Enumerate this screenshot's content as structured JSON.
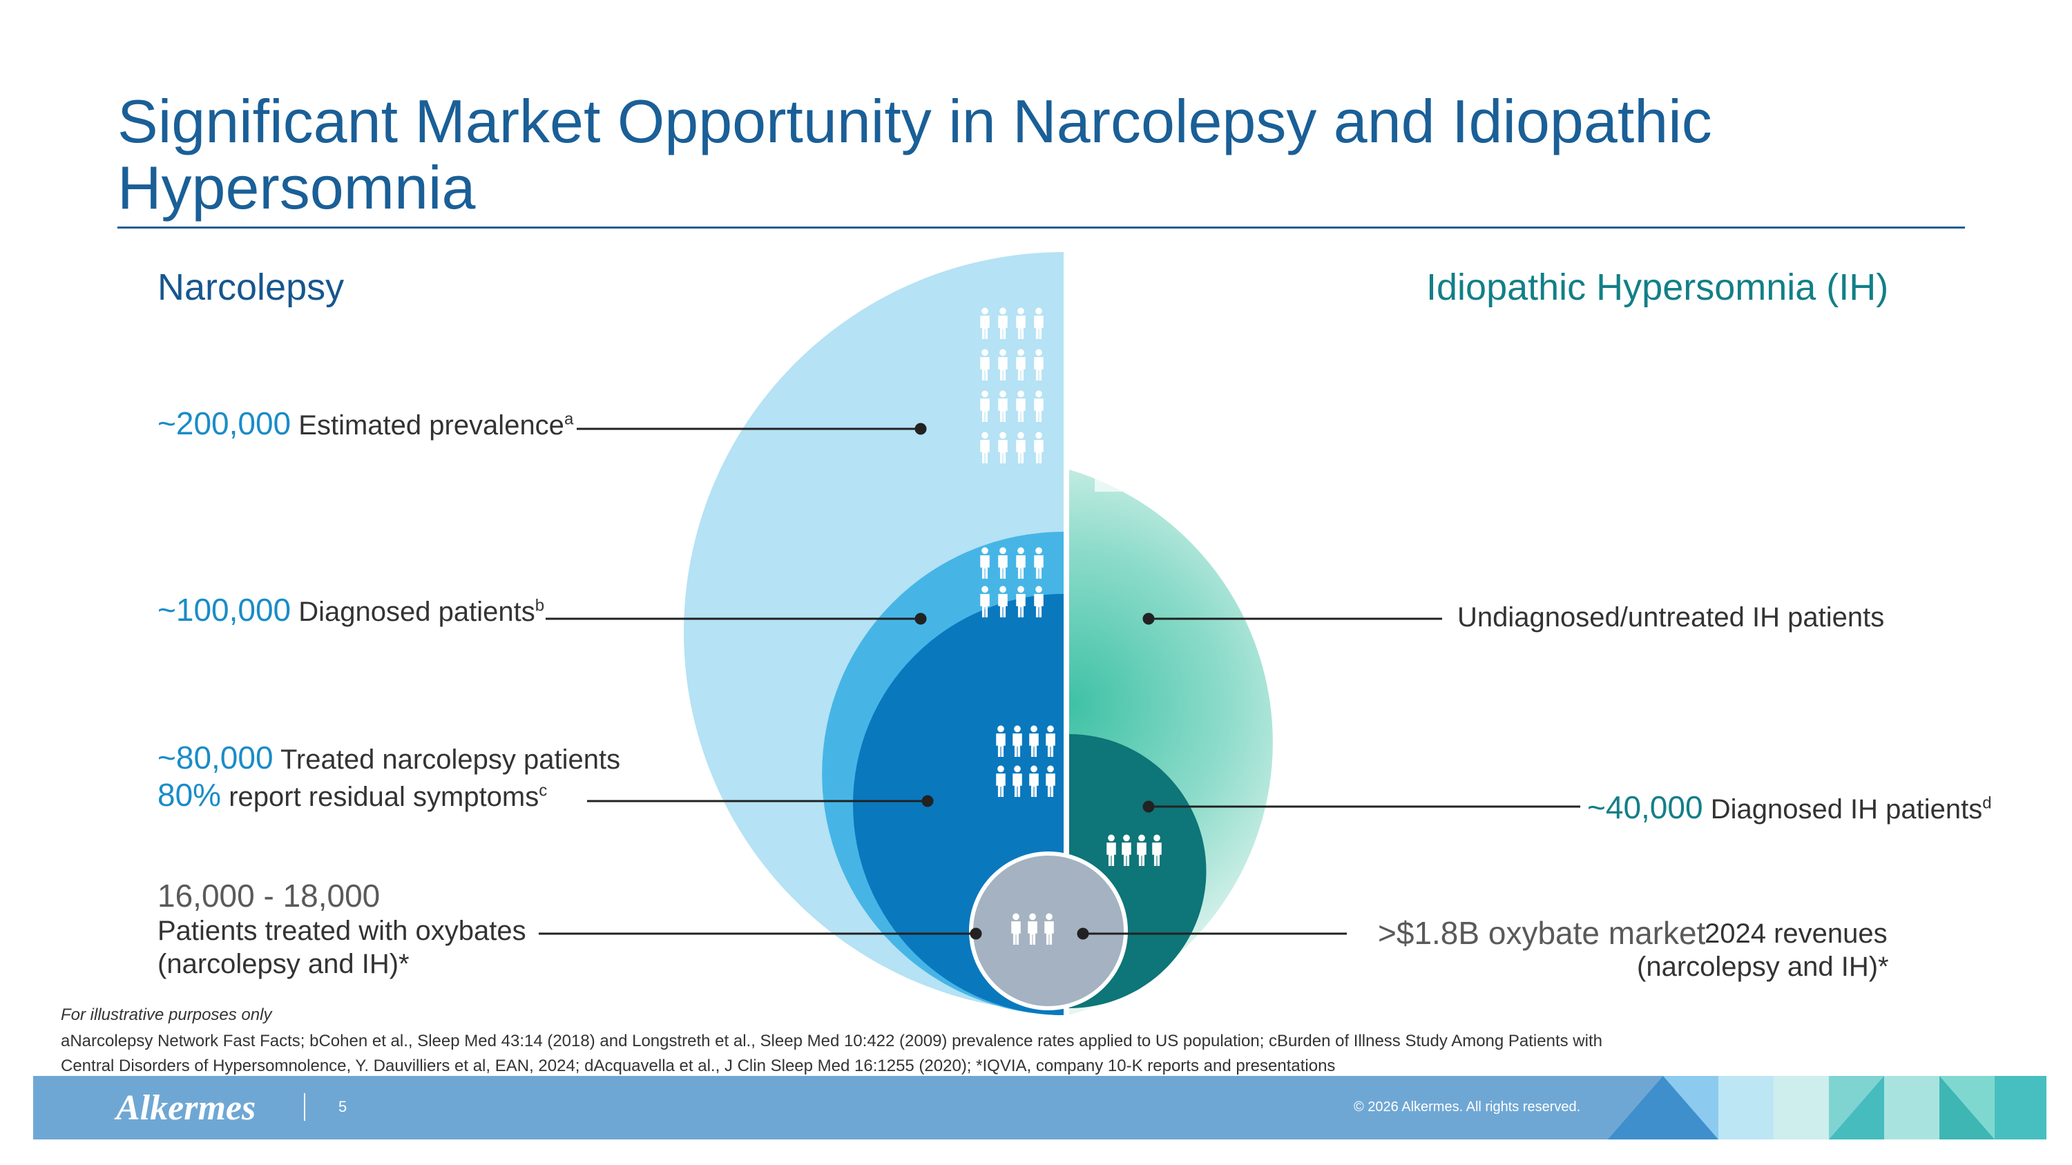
{
  "title": "Significant Market Opportunity in Narcolepsy and Idiopathic Hypersomnia",
  "narcolepsy": {
    "heading": "Narcolepsy",
    "prevalence_value": "~200,000",
    "prevalence_label": "Estimated prevalence",
    "prevalence_sup": "a",
    "diagnosed_value": "~100,000",
    "diagnosed_label": "Diagnosed patients",
    "diagnosed_sup": "b",
    "treated_value": "~80,000",
    "treated_label": "Treated narcolepsy patients",
    "residual_value": "80%",
    "residual_label": "report residual symptoms",
    "residual_sup": "c",
    "oxybate_range": "16,000 - 18,000",
    "oxybate_label_1": "Patients treated with oxybates",
    "oxybate_label_2": "(narcolepsy and IH)*"
  },
  "ih": {
    "heading": "Idiopathic Hypersomnia (IH)",
    "undiagnosed_label": "Undiagnosed/untreated IH patients",
    "diagnosed_value": "~40,000",
    "diagnosed_label": "Diagnosed IH patients",
    "diagnosed_sup": "d",
    "market_value": ">$1.8B oxybate market",
    "market_label_1": "2024 revenues",
    "market_label_2": "(narcolepsy and IH)*"
  },
  "footnotes": {
    "illustrative": "For illustrative purposes only",
    "refs_line1": "aNarcolepsy Network Fast Facts; bCohen et al., Sleep Med 43:14 (2018) and Longstreth et al., Sleep Med 10:422 (2009) prevalence rates applied to US population; cBurden of Illness Study Among Patients with",
    "refs_line2": "Central Disorders of Hypersomnolence, Y. Dauvilliers et al, EAN, 2024; dAcquavella et al., J Clin Sleep Med 16:1255 (2020); *IQVIA, company 10-K reports and presentations"
  },
  "footer": {
    "logo": "Alkermes",
    "page_number": "5",
    "copyright": "© 2026 Alkermes. All rights reserved."
  },
  "colors": {
    "title": "#1a5f97",
    "narcolepsy_outer": "#b5e2f4",
    "narcolepsy_diagnosed": "#46b5e6",
    "narcolepsy_treated": "#0a78bd",
    "oxybate": "#a4b2c2",
    "ih_outer": "#3ec1a5",
    "ih_diagnosed": "#0e7578",
    "footer_band": "#6fa7d4"
  },
  "icons": {
    "people": "person-group-icon"
  }
}
